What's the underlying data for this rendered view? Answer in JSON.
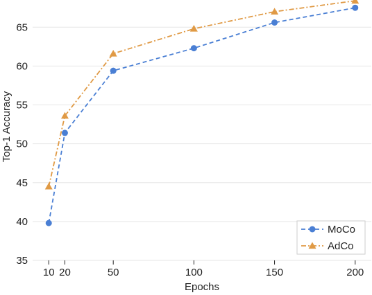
{
  "chart_data": {
    "type": "line",
    "title": "",
    "xlabel": "Epochs",
    "ylabel": "Top-1 Accuracy",
    "x": [
      10,
      20,
      50,
      100,
      150,
      200
    ],
    "xticks": [
      "10",
      "20",
      "50",
      "100",
      "150",
      "200"
    ],
    "yticks": [
      "35",
      "40",
      "45",
      "50",
      "55",
      "60",
      "65"
    ],
    "xlim": [
      0,
      210
    ],
    "ylim": [
      35,
      68.5
    ],
    "grid": "horizontal",
    "legend_position": "bottom-right",
    "series": [
      {
        "name": "MoCo",
        "values": [
          39.8,
          51.4,
          59.4,
          62.3,
          65.6,
          67.5
        ],
        "color": "#4a7fd4",
        "marker": "circle",
        "line_style": "dashed"
      },
      {
        "name": "AdCo",
        "values": [
          44.5,
          53.6,
          61.6,
          64.8,
          67.0,
          68.4
        ],
        "color": "#e09a45",
        "marker": "triangle",
        "line_style": "dashdot"
      }
    ]
  }
}
